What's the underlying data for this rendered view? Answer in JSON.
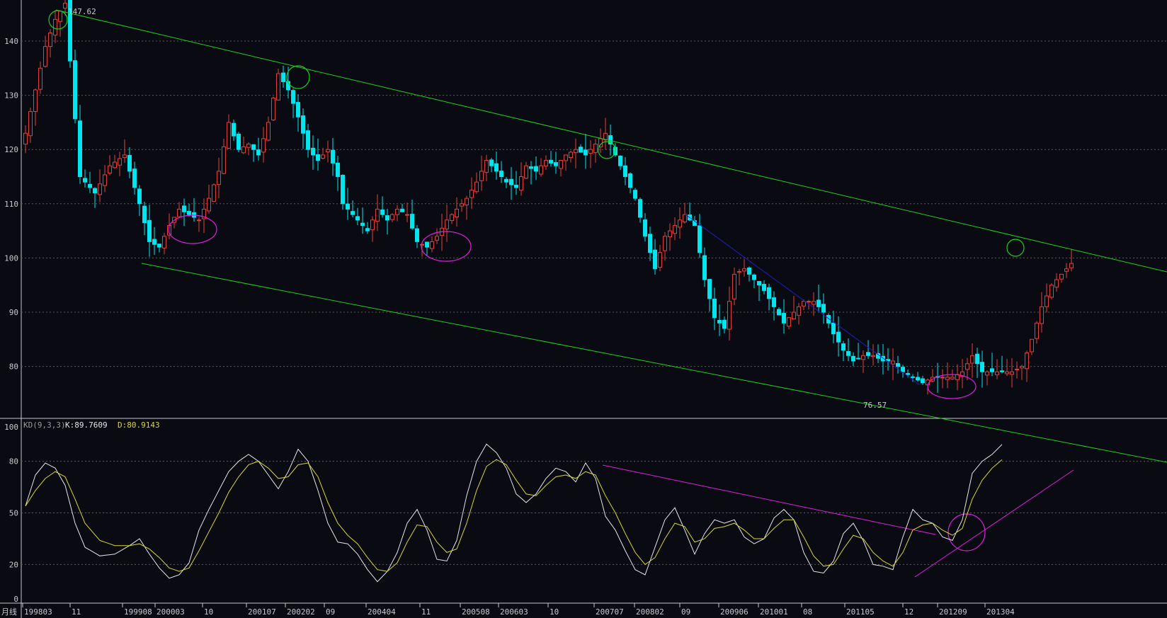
{
  "colors": {
    "background": "#0a0a12",
    "grid": "#5a5a5a",
    "up": "#e0413a",
    "down": "#00e6ee",
    "trend": "#1ed01e",
    "blue_line": "#2020c0",
    "magenta": "#e020e0",
    "k_line": "#e6e6e6",
    "d_line": "#d8d830",
    "label": "#c8c8c8"
  },
  "annotations": {
    "high_label": "147.62",
    "low_label": "76.57",
    "period_label": "月线"
  },
  "indicator": {
    "name": "KD(9,3,3)",
    "k_text": "K:89.7609",
    "d_text": "D:80.9143"
  },
  "chart_data": [
    {
      "type": "candlestick",
      "period": "monthly",
      "ylim": [
        75,
        149
      ],
      "yticks": [
        80,
        90,
        100,
        110,
        120,
        130,
        140
      ],
      "x_labels": [
        "199803",
        "11",
        "199908",
        "200003",
        "10",
        "200107",
        "200202",
        "09",
        "200404",
        "11",
        "200508",
        "200603",
        "10",
        "200707",
        "200802",
        "09",
        "200906",
        "201001",
        "08",
        "201105",
        "12",
        "201209",
        "201304"
      ],
      "high": 147.62,
      "low": 76.57,
      "anchors": [
        [
          0,
          123
        ],
        [
          4,
          139
        ],
        [
          6,
          144
        ],
        [
          8,
          147
        ],
        [
          11,
          115
        ],
        [
          14,
          112
        ],
        [
          17,
          117
        ],
        [
          20,
          119
        ],
        [
          23,
          110
        ],
        [
          25,
          103
        ],
        [
          27,
          102
        ],
        [
          29,
          106
        ],
        [
          31,
          109
        ],
        [
          33,
          108
        ],
        [
          35,
          107
        ],
        [
          37,
          111
        ],
        [
          39,
          116
        ],
        [
          41,
          125
        ],
        [
          43,
          120
        ],
        [
          45,
          121
        ],
        [
          47,
          119
        ],
        [
          49,
          125
        ],
        [
          51,
          134
        ],
        [
          53,
          131
        ],
        [
          55,
          126
        ],
        [
          57,
          120
        ],
        [
          59,
          118
        ],
        [
          61,
          120
        ],
        [
          63,
          115
        ],
        [
          64,
          110
        ],
        [
          67,
          107
        ],
        [
          69,
          105
        ],
        [
          71,
          109
        ],
        [
          73,
          107
        ],
        [
          75,
          109
        ],
        [
          77,
          108
        ],
        [
          79,
          103
        ],
        [
          81,
          102
        ],
        [
          83,
          104
        ],
        [
          85,
          107
        ],
        [
          87,
          109
        ],
        [
          89,
          111
        ],
        [
          91,
          114
        ],
        [
          93,
          118
        ],
        [
          95,
          116
        ],
        [
          97,
          114
        ],
        [
          99,
          113
        ],
        [
          101,
          117
        ],
        [
          103,
          116
        ],
        [
          105,
          118
        ],
        [
          107,
          117
        ],
        [
          109,
          119
        ],
        [
          111,
          120
        ],
        [
          113,
          119
        ],
        [
          115,
          121
        ],
        [
          117,
          123
        ],
        [
          119,
          119
        ],
        [
          121,
          115
        ],
        [
          123,
          111
        ],
        [
          125,
          104
        ],
        [
          127,
          98
        ],
        [
          129,
          104
        ],
        [
          131,
          106
        ],
        [
          133,
          108
        ],
        [
          135,
          106
        ],
        [
          137,
          96
        ],
        [
          139,
          89
        ],
        [
          141,
          87
        ],
        [
          143,
          97
        ],
        [
          145,
          98
        ],
        [
          147,
          96
        ],
        [
          149,
          94
        ],
        [
          151,
          91
        ],
        [
          153,
          88
        ],
        [
          155,
          90
        ],
        [
          157,
          92
        ],
        [
          159,
          92
        ],
        [
          161,
          90
        ],
        [
          163,
          86
        ],
        [
          165,
          83
        ],
        [
          167,
          81
        ],
        [
          169,
          82
        ],
        [
          171,
          82
        ],
        [
          173,
          81
        ],
        [
          175,
          81
        ],
        [
          177,
          79
        ],
        [
          179,
          78
        ],
        [
          181,
          77
        ],
        [
          183,
          78
        ],
        [
          185,
          78
        ],
        [
          187,
          78
        ],
        [
          189,
          79
        ],
        [
          191,
          82
        ],
        [
          193,
          79
        ],
        [
          195,
          79
        ],
        [
          197,
          79
        ],
        [
          199,
          79
        ],
        [
          201,
          80
        ],
        [
          203,
          85
        ],
        [
          205,
          91
        ],
        [
          207,
          95
        ],
        [
          209,
          97
        ],
        [
          211,
          99
        ]
      ]
    },
    {
      "type": "line",
      "title": "KD(9,3,3)",
      "ylim": [
        0,
        100
      ],
      "yticks": [
        0,
        20,
        50,
        80,
        100
      ],
      "series": [
        {
          "name": "K",
          "anchors": [
            [
              0,
              54
            ],
            [
              2,
              72
            ],
            [
              4,
              79
            ],
            [
              6,
              76
            ],
            [
              8,
              66
            ],
            [
              10,
              44
            ],
            [
              12,
              30
            ],
            [
              15,
              25
            ],
            [
              18,
              26
            ],
            [
              21,
              31
            ],
            [
              23,
              35
            ],
            [
              25,
              26
            ],
            [
              27,
              18
            ],
            [
              29,
              12
            ],
            [
              31,
              14
            ],
            [
              33,
              21
            ],
            [
              35,
              40
            ],
            [
              37,
              52
            ],
            [
              39,
              63
            ],
            [
              41,
              74
            ],
            [
              43,
              80
            ],
            [
              45,
              84
            ],
            [
              47,
              80
            ],
            [
              49,
              72
            ],
            [
              51,
              64
            ],
            [
              53,
              74
            ],
            [
              55,
              87
            ],
            [
              57,
              80
            ],
            [
              59,
              63
            ],
            [
              61,
              44
            ],
            [
              63,
              33
            ],
            [
              65,
              32
            ],
            [
              67,
              26
            ],
            [
              69,
              17
            ],
            [
              71,
              10
            ],
            [
              73,
              16
            ],
            [
              75,
              27
            ],
            [
              77,
              44
            ],
            [
              79,
              52
            ],
            [
              81,
              40
            ],
            [
              83,
              23
            ],
            [
              85,
              22
            ],
            [
              87,
              34
            ],
            [
              89,
              60
            ],
            [
              91,
              80
            ],
            [
              93,
              90
            ],
            [
              95,
              85
            ],
            [
              97,
              76
            ],
            [
              99,
              61
            ],
            [
              101,
              56
            ],
            [
              103,
              61
            ],
            [
              105,
              70
            ],
            [
              107,
              76
            ],
            [
              109,
              74
            ],
            [
              111,
              68
            ],
            [
              113,
              79
            ],
            [
              115,
              70
            ],
            [
              117,
              48
            ],
            [
              119,
              40
            ],
            [
              121,
              28
            ],
            [
              123,
              17
            ],
            [
              125,
              14
            ],
            [
              127,
              30
            ],
            [
              129,
              46
            ],
            [
              131,
              53
            ],
            [
              133,
              40
            ],
            [
              135,
              26
            ],
            [
              137,
              38
            ],
            [
              139,
              46
            ],
            [
              141,
              44
            ],
            [
              143,
              46
            ],
            [
              145,
              36
            ],
            [
              147,
              32
            ],
            [
              149,
              35
            ],
            [
              151,
              47
            ],
            [
              153,
              52
            ],
            [
              155,
              46
            ],
            [
              157,
              27
            ],
            [
              159,
              16
            ],
            [
              161,
              15
            ],
            [
              163,
              22
            ],
            [
              165,
              38
            ],
            [
              167,
              44
            ],
            [
              169,
              34
            ],
            [
              171,
              20
            ],
            [
              173,
              19
            ],
            [
              175,
              17
            ],
            [
              177,
              36
            ],
            [
              179,
              52
            ],
            [
              181,
              46
            ],
            [
              183,
              44
            ],
            [
              185,
              36
            ],
            [
              187,
              34
            ],
            [
              189,
              46
            ],
            [
              191,
              73
            ],
            [
              193,
              80
            ],
            [
              195,
              84
            ],
            [
              197,
              89.76
            ]
          ]
        },
        {
          "name": "D",
          "anchors": [
            [
              0,
              54
            ],
            [
              2,
              63
            ],
            [
              4,
              70
            ],
            [
              6,
              74
            ],
            [
              8,
              71
            ],
            [
              10,
              58
            ],
            [
              12,
              44
            ],
            [
              15,
              34
            ],
            [
              18,
              31
            ],
            [
              21,
              31
            ],
            [
              23,
              32
            ],
            [
              25,
              29
            ],
            [
              27,
              24
            ],
            [
              29,
              18
            ],
            [
              31,
              16
            ],
            [
              33,
              18
            ],
            [
              35,
              28
            ],
            [
              37,
              39
            ],
            [
              39,
              50
            ],
            [
              41,
              62
            ],
            [
              43,
              71
            ],
            [
              45,
              78
            ],
            [
              47,
              80
            ],
            [
              49,
              76
            ],
            [
              51,
              70
            ],
            [
              53,
              71
            ],
            [
              55,
              78
            ],
            [
              57,
              79
            ],
            [
              59,
              71
            ],
            [
              61,
              56
            ],
            [
              63,
              44
            ],
            [
              65,
              37
            ],
            [
              67,
              32
            ],
            [
              69,
              24
            ],
            [
              71,
              17
            ],
            [
              73,
              16
            ],
            [
              75,
              21
            ],
            [
              77,
              33
            ],
            [
              79,
              43
            ],
            [
              81,
              42
            ],
            [
              83,
              33
            ],
            [
              85,
              27
            ],
            [
              87,
              29
            ],
            [
              89,
              44
            ],
            [
              91,
              63
            ],
            [
              93,
              77
            ],
            [
              95,
              81
            ],
            [
              97,
              78
            ],
            [
              99,
              69
            ],
            [
              101,
              61
            ],
            [
              103,
              60
            ],
            [
              105,
              66
            ],
            [
              107,
              71
            ],
            [
              109,
              72
            ],
            [
              111,
              70
            ],
            [
              113,
              74
            ],
            [
              115,
              72
            ],
            [
              117,
              60
            ],
            [
              119,
              50
            ],
            [
              121,
              38
            ],
            [
              123,
              27
            ],
            [
              125,
              20
            ],
            [
              127,
              24
            ],
            [
              129,
              35
            ],
            [
              131,
              44
            ],
            [
              133,
              42
            ],
            [
              135,
              33
            ],
            [
              137,
              35
            ],
            [
              139,
              41
            ],
            [
              141,
              42
            ],
            [
              143,
              44
            ],
            [
              145,
              40
            ],
            [
              147,
              35
            ],
            [
              149,
              35
            ],
            [
              151,
              41
            ],
            [
              153,
              46
            ],
            [
              155,
              46
            ],
            [
              157,
              36
            ],
            [
              159,
              25
            ],
            [
              161,
              19
            ],
            [
              163,
              20
            ],
            [
              165,
              29
            ],
            [
              167,
              37
            ],
            [
              169,
              35
            ],
            [
              171,
              27
            ],
            [
              173,
              22
            ],
            [
              175,
              19
            ],
            [
              177,
              27
            ],
            [
              179,
              40
            ],
            [
              181,
              43
            ],
            [
              183,
              44
            ],
            [
              185,
              40
            ],
            [
              187,
              37
            ],
            [
              189,
              41
            ],
            [
              191,
              58
            ],
            [
              193,
              69
            ],
            [
              195,
              76
            ],
            [
              197,
              80.91
            ]
          ]
        }
      ]
    }
  ]
}
